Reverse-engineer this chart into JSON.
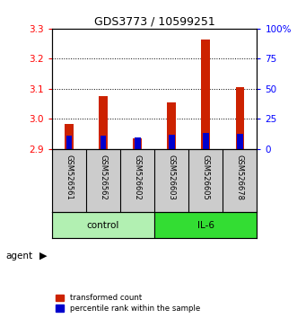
{
  "title": "GDS3773 / 10599251",
  "samples": [
    "GSM526561",
    "GSM526562",
    "GSM526602",
    "GSM526603",
    "GSM526605",
    "GSM526678"
  ],
  "groups": [
    "control",
    "control",
    "control",
    "IL-6",
    "IL-6",
    "IL-6"
  ],
  "red_values": [
    2.985,
    3.075,
    2.935,
    3.055,
    3.265,
    3.105
  ],
  "blue_values": [
    2.945,
    2.945,
    2.94,
    2.947,
    2.955,
    2.95
  ],
  "y_min": 2.9,
  "y_max": 3.3,
  "y_ticks": [
    2.9,
    3.0,
    3.1,
    3.2,
    3.3
  ],
  "y2_ticks": [
    0,
    25,
    50,
    75,
    100
  ],
  "y2_tick_positions": [
    2.9,
    3.0,
    3.1,
    3.2,
    3.3
  ],
  "group_colors": {
    "control": "#b2f0b2",
    "IL-6": "#33dd33"
  },
  "red_color": "#cc2200",
  "blue_color": "#0000cc",
  "background_color": "#ffffff",
  "plot_bg_color": "#ffffff",
  "sample_area_color": "#cccccc",
  "legend_red": "transformed count",
  "legend_blue": "percentile rank within the sample"
}
